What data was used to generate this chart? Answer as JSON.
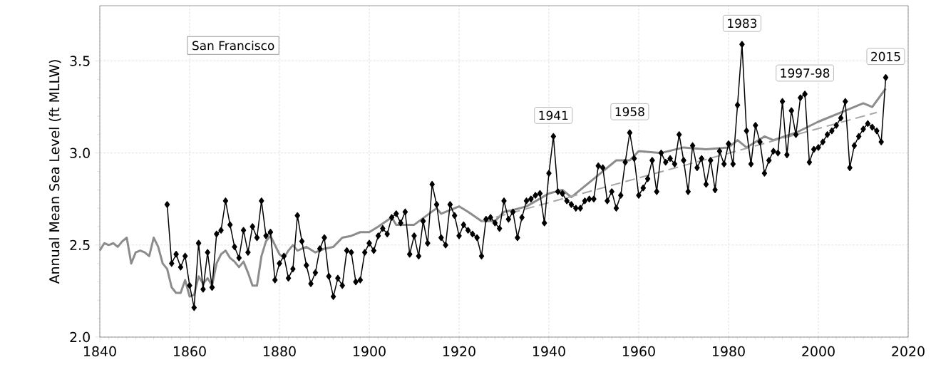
{
  "chart_data": {
    "type": "line",
    "title": "San Francisco",
    "ylabel": "Annual Mean Sea Level (ft MLLW)",
    "xlim": [
      1840,
      2020
    ],
    "xticks": [
      1840,
      1860,
      1880,
      1900,
      1920,
      1940,
      1960,
      1980,
      2000,
      2020
    ],
    "ylim": [
      2.0,
      3.8
    ],
    "yticks": [
      {
        "value": 2.0,
        "label": "2.0"
      },
      {
        "value": 2.5,
        "label": "2.5"
      },
      {
        "value": 3.0,
        "label": "3.0"
      },
      {
        "value": 3.5,
        "label": "3.5"
      }
    ],
    "grid": true,
    "series": [
      {
        "color": "#8c8c8c",
        "marker": "none",
        "line_style": "solid",
        "x": [
          1840,
          1841,
          1842,
          1843,
          1844,
          1845,
          1846,
          1847,
          1848,
          1849,
          1850,
          1851,
          1852,
          1853,
          1854,
          1855,
          1856,
          1857,
          1858,
          1859,
          1860,
          1861,
          1862,
          1863,
          1864,
          1865,
          1866,
          1867,
          1868,
          1869,
          1870,
          1871,
          1872,
          1873,
          1874,
          1875,
          1876,
          1877,
          1878,
          1879,
          1880,
          1881,
          1882,
          1883,
          1884,
          1886,
          1888,
          1890,
          1892,
          1894,
          1896,
          1898,
          1900,
          1902,
          1905,
          1906,
          1910,
          1915,
          1916,
          1920,
          1922,
          1925,
          1928,
          1930,
          1932,
          1935,
          1940,
          1943,
          1945,
          1950,
          1955,
          1958,
          1960,
          1965,
          1970,
          1975,
          1980,
          1982,
          1984,
          1988,
          1990,
          1995,
          2000,
          2005,
          2010,
          2012,
          2015
        ],
        "values": [
          2.47,
          2.51,
          2.5,
          2.51,
          2.49,
          2.52,
          2.54,
          2.4,
          2.46,
          2.47,
          2.46,
          2.44,
          2.54,
          2.49,
          2.4,
          2.37,
          2.27,
          2.24,
          2.24,
          2.31,
          2.22,
          2.23,
          2.33,
          2.29,
          2.32,
          2.28,
          2.4,
          2.45,
          2.47,
          2.43,
          2.41,
          2.38,
          2.41,
          2.35,
          2.28,
          2.28,
          2.44,
          2.52,
          2.55,
          2.5,
          2.45,
          2.43,
          2.47,
          2.5,
          2.47,
          2.49,
          2.46,
          2.48,
          2.49,
          2.54,
          2.55,
          2.57,
          2.57,
          2.6,
          2.65,
          2.61,
          2.61,
          2.7,
          2.67,
          2.71,
          2.68,
          2.63,
          2.63,
          2.68,
          2.69,
          2.71,
          2.78,
          2.8,
          2.76,
          2.86,
          2.96,
          2.96,
          3.01,
          3.0,
          3.03,
          3.02,
          3.03,
          3.07,
          3.03,
          3.09,
          3.07,
          3.11,
          3.17,
          3.22,
          3.27,
          3.25,
          3.35
        ]
      },
      {
        "type": "line",
        "color": "#a6a6a6",
        "marker": "none",
        "line_style": "dashed",
        "x": [
          1925,
          2013
        ],
        "values": [
          2.63,
          3.22
        ]
      },
      {
        "color": "#000000",
        "marker": "diamond",
        "line_style": "solid",
        "x": [
          1855,
          1856,
          1857,
          1858,
          1859,
          1860,
          1861,
          1862,
          1863,
          1864,
          1865,
          1866,
          1867,
          1868,
          1869,
          1870,
          1871,
          1872,
          1873,
          1874,
          1875,
          1876,
          1877,
          1878,
          1879,
          1880,
          1881,
          1882,
          1883,
          1884,
          1885,
          1886,
          1887,
          1888,
          1889,
          1890,
          1891,
          1892,
          1893,
          1894,
          1895,
          1896,
          1897,
          1898,
          1899,
          1900,
          1901,
          1902,
          1903,
          1904,
          1905,
          1906,
          1907,
          1908,
          1909,
          1910,
          1911,
          1912,
          1913,
          1914,
          1915,
          1916,
          1917,
          1918,
          1919,
          1920,
          1921,
          1922,
          1923,
          1924,
          1925,
          1926,
          1927,
          1928,
          1929,
          1930,
          1931,
          1932,
          1933,
          1934,
          1935,
          1936,
          1937,
          1938,
          1939,
          1940,
          1941,
          1942,
          1943,
          1944,
          1945,
          1946,
          1947,
          1948,
          1949,
          1950,
          1951,
          1952,
          1953,
          1954,
          1955,
          1956,
          1957,
          1958,
          1959,
          1960,
          1961,
          1962,
          1963,
          1964,
          1965,
          1966,
          1967,
          1968,
          1969,
          1970,
          1971,
          1972,
          1973,
          1974,
          1975,
          1976,
          1977,
          1978,
          1979,
          1980,
          1981,
          1982,
          1983,
          1984,
          1985,
          1986,
          1987,
          1988,
          1989,
          1990,
          1991,
          1992,
          1993,
          1994,
          1995,
          1996,
          1997,
          1998,
          1999,
          2000,
          2001,
          2002,
          2003,
          2004,
          2005,
          2006,
          2007,
          2008,
          2009,
          2010,
          2011,
          2012,
          2013,
          2014,
          2015
        ],
        "values": [
          2.72,
          2.4,
          2.45,
          2.38,
          2.44,
          2.28,
          2.16,
          2.51,
          2.26,
          2.46,
          2.27,
          2.56,
          2.58,
          2.74,
          2.61,
          2.49,
          2.43,
          2.58,
          2.46,
          2.6,
          2.54,
          2.74,
          2.55,
          2.57,
          2.31,
          2.4,
          2.44,
          2.32,
          2.37,
          2.66,
          2.52,
          2.39,
          2.29,
          2.35,
          2.48,
          2.54,
          2.33,
          2.22,
          2.32,
          2.28,
          2.47,
          2.46,
          2.3,
          2.31,
          2.46,
          2.51,
          2.47,
          2.55,
          2.59,
          2.56,
          2.65,
          2.67,
          2.62,
          2.68,
          2.45,
          2.55,
          2.44,
          2.63,
          2.51,
          2.83,
          2.72,
          2.54,
          2.5,
          2.72,
          2.66,
          2.55,
          2.61,
          2.58,
          2.56,
          2.54,
          2.44,
          2.64,
          2.65,
          2.62,
          2.59,
          2.74,
          2.64,
          2.68,
          2.54,
          2.65,
          2.74,
          2.75,
          2.77,
          2.78,
          2.62,
          2.89,
          3.09,
          2.79,
          2.78,
          2.74,
          2.72,
          2.7,
          2.7,
          2.74,
          2.75,
          2.75,
          2.93,
          2.92,
          2.74,
          2.79,
          2.7,
          2.77,
          2.95,
          3.11,
          2.97,
          2.77,
          2.81,
          2.86,
          2.96,
          2.79,
          3.0,
          2.95,
          2.97,
          2.94,
          3.1,
          2.96,
          2.79,
          3.04,
          2.92,
          2.97,
          2.83,
          2.96,
          2.8,
          3.01,
          2.94,
          3.05,
          2.94,
          3.26,
          3.59,
          3.12,
          2.94,
          3.15,
          3.06,
          2.89,
          2.96,
          3.01,
          3.0,
          3.28,
          2.99,
          3.23,
          3.1,
          3.3,
          3.32,
          2.95,
          3.02,
          3.03,
          3.06,
          3.1,
          3.12,
          3.15,
          3.19,
          3.28,
          2.92,
          3.04,
          3.09,
          3.13,
          3.16,
          3.14,
          3.12,
          3.06,
          3.41
        ]
      }
    ],
    "annotations": [
      {
        "text": "1941",
        "x": 1941,
        "y": 3.09
      },
      {
        "text": "1958",
        "x": 1958,
        "y": 3.11
      },
      {
        "text": "1983",
        "x": 1983,
        "y": 3.59
      },
      {
        "text": "1997-98",
        "x": 1997,
        "y": 3.32
      },
      {
        "text": "2015",
        "x": 2015,
        "y": 3.41
      }
    ]
  }
}
